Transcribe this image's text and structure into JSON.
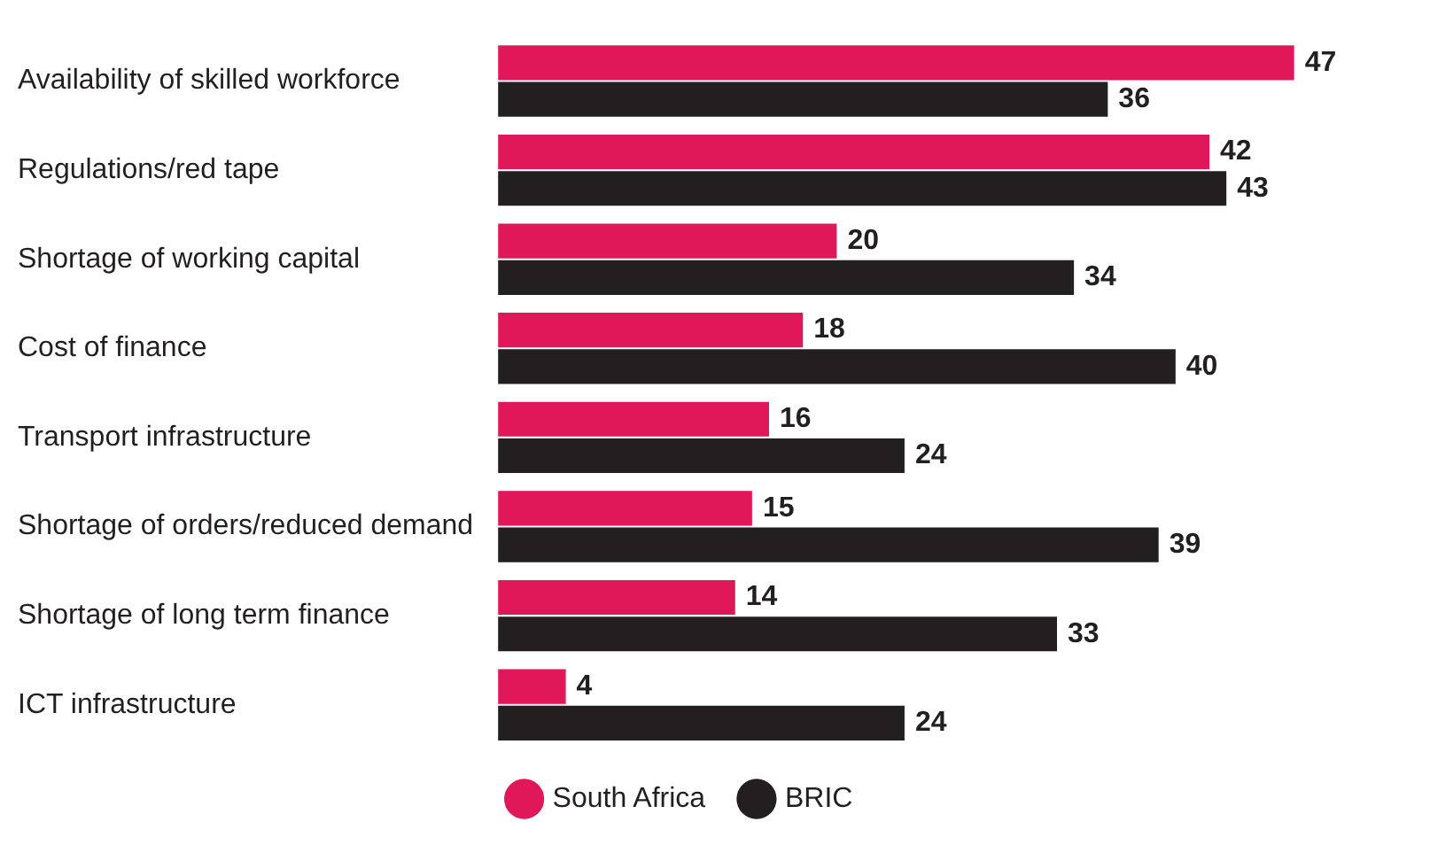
{
  "chart_data": {
    "type": "bar",
    "orientation": "horizontal",
    "categories": [
      "Availability of skilled workforce",
      "Regulations/red tape",
      "Shortage of working capital",
      "Cost of finance",
      "Transport infrastructure",
      "Shortage of orders/reduced demand",
      "Shortage of long term finance",
      "ICT infrastructure"
    ],
    "series": [
      {
        "name": "South Africa",
        "color": "#e0185a",
        "values": [
          47,
          42,
          20,
          18,
          16,
          15,
          14,
          4
        ]
      },
      {
        "name": "BRIC",
        "color": "#231f20",
        "values": [
          36,
          43,
          34,
          40,
          24,
          39,
          33,
          24
        ]
      }
    ],
    "data_labels": true,
    "legend": "bottom"
  }
}
